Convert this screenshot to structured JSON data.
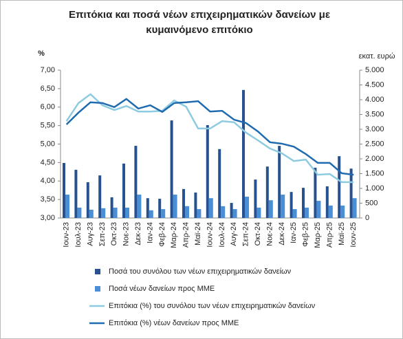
{
  "chart_data": {
    "type": "bar-line",
    "title": [
      "Επιτόκια και ποσά νέων επιχειρηματικών δανείων με",
      "κυμαινόμενο επιτόκιο"
    ],
    "y_label": "%",
    "y2_label": "εκατ. ευρώ",
    "categories": [
      "Ιουν-23",
      "Ιουλ-23",
      "Αυγ-23",
      "Σεπ-23",
      "Οκτ-23",
      "Νοε-23",
      "Δεκ-23",
      "Ιαν-24",
      "Φεβ-24",
      "Μαρ-24",
      "Απρ-24",
      "Μαϊ-24",
      "Ιουν-24",
      "Ιουλ-24",
      "Αυγ-24",
      "Σεπ-24",
      "Οκτ-24",
      "Νοε-24",
      "Δεκ-24",
      "Ιαν-25",
      "Φεβ-25",
      "Μαρ-25",
      "Απρ-25",
      "Μαϊ-25",
      "Ιουν-25"
    ],
    "ylim": [
      3,
      7
    ],
    "yticks": [
      {
        "value": 3,
        "label": "3,00"
      },
      {
        "value": 3.5,
        "label": "3,50"
      },
      {
        "value": 4,
        "label": "4,00"
      },
      {
        "value": 4.5,
        "label": "4,50"
      },
      {
        "value": 5,
        "label": "5,00"
      },
      {
        "value": 5.5,
        "label": "5,50"
      },
      {
        "value": 6,
        "label": "6,00"
      },
      {
        "value": 6.5,
        "label": "6,50"
      },
      {
        "value": 7,
        "label": "7,00"
      }
    ],
    "y2lim": [
      0,
      5000
    ],
    "y2ticks": [
      0,
      500,
      {
        "value": 1000,
        "label": "1.000"
      },
      {
        "value": 1500,
        "label": "1.500"
      },
      {
        "value": 2000,
        "label": "2.000"
      },
      {
        "value": 2500,
        "label": "2.500"
      },
      {
        "value": 3000,
        "label": "3.000"
      },
      {
        "value": 3500,
        "label": "3.500"
      },
      {
        "value": 4000,
        "label": "4.000"
      },
      {
        "value": 4500,
        "label": "4.500"
      },
      {
        "value": 5000,
        "label": "5.000"
      }
    ],
    "series": [
      {
        "name": "Ποσά του συνόλου των νέων επιχειρηματικών δανείων",
        "kind": "bar",
        "axis": "y2",
        "color": "#27518f",
        "values": [
          1860,
          1630,
          1210,
          1440,
          700,
          1840,
          2440,
          670,
          650,
          3300,
          980,
          860,
          3140,
          2330,
          510,
          4330,
          1300,
          1740,
          2440,
          880,
          1020,
          1700,
          1070,
          2090,
          1670
        ]
      },
      {
        "name": "Ποσά νέων δανείων προς ΜΜΕ",
        "kind": "bar",
        "axis": "y2",
        "color": "#4a8fd6",
        "values": [
          790,
          350,
          280,
          330,
          350,
          350,
          790,
          260,
          300,
          790,
          400,
          300,
          670,
          400,
          300,
          720,
          350,
          600,
          790,
          300,
          350,
          580,
          420,
          420,
          670
        ]
      },
      {
        "name": "Επιτόκια (%) του συνόλου των νέων επιχειρηματικών δανείων",
        "kind": "line",
        "color": "#8ccbe0",
        "values": [
          5.62,
          6.11,
          6.35,
          6.05,
          5.92,
          6.03,
          5.88,
          5.88,
          5.9,
          6.18,
          6.01,
          5.42,
          5.42,
          5.62,
          5.59,
          5.31,
          5.1,
          4.88,
          4.75,
          4.54,
          4.58,
          4.17,
          4.19,
          3.97,
          3.97
        ]
      },
      {
        "name": "Επιτόκια (%) νέων δανείων προς ΜΜΕ",
        "kind": "line",
        "color": "#1f6bb0",
        "values": [
          5.53,
          5.85,
          6.13,
          6.11,
          6.0,
          6.22,
          5.96,
          6.05,
          5.87,
          6.11,
          6.13,
          6.16,
          5.88,
          5.9,
          5.66,
          5.57,
          5.34,
          5.05,
          5.01,
          4.93,
          4.73,
          4.49,
          4.49,
          4.21,
          4.17
        ]
      }
    ]
  }
}
